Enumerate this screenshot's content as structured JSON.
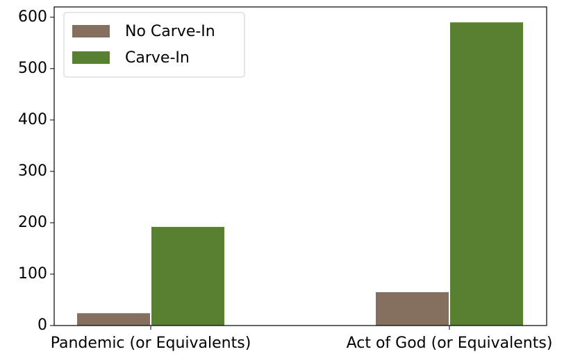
{
  "chart_data": {
    "type": "bar",
    "categories": [
      "Pandemic (or Equivalents)",
      "Act of God (or Equivalents)"
    ],
    "series": [
      {
        "name": "No Carve-In",
        "color": "#85705f",
        "values": [
          24,
          65
        ]
      },
      {
        "name": "Carve-In",
        "color": "#578030",
        "values": [
          192,
          590
        ]
      }
    ],
    "ylim": [
      0,
      620
    ],
    "yticks": [
      0,
      100,
      200,
      300,
      400,
      500,
      600
    ],
    "legend": "upper left",
    "grid": false
  }
}
